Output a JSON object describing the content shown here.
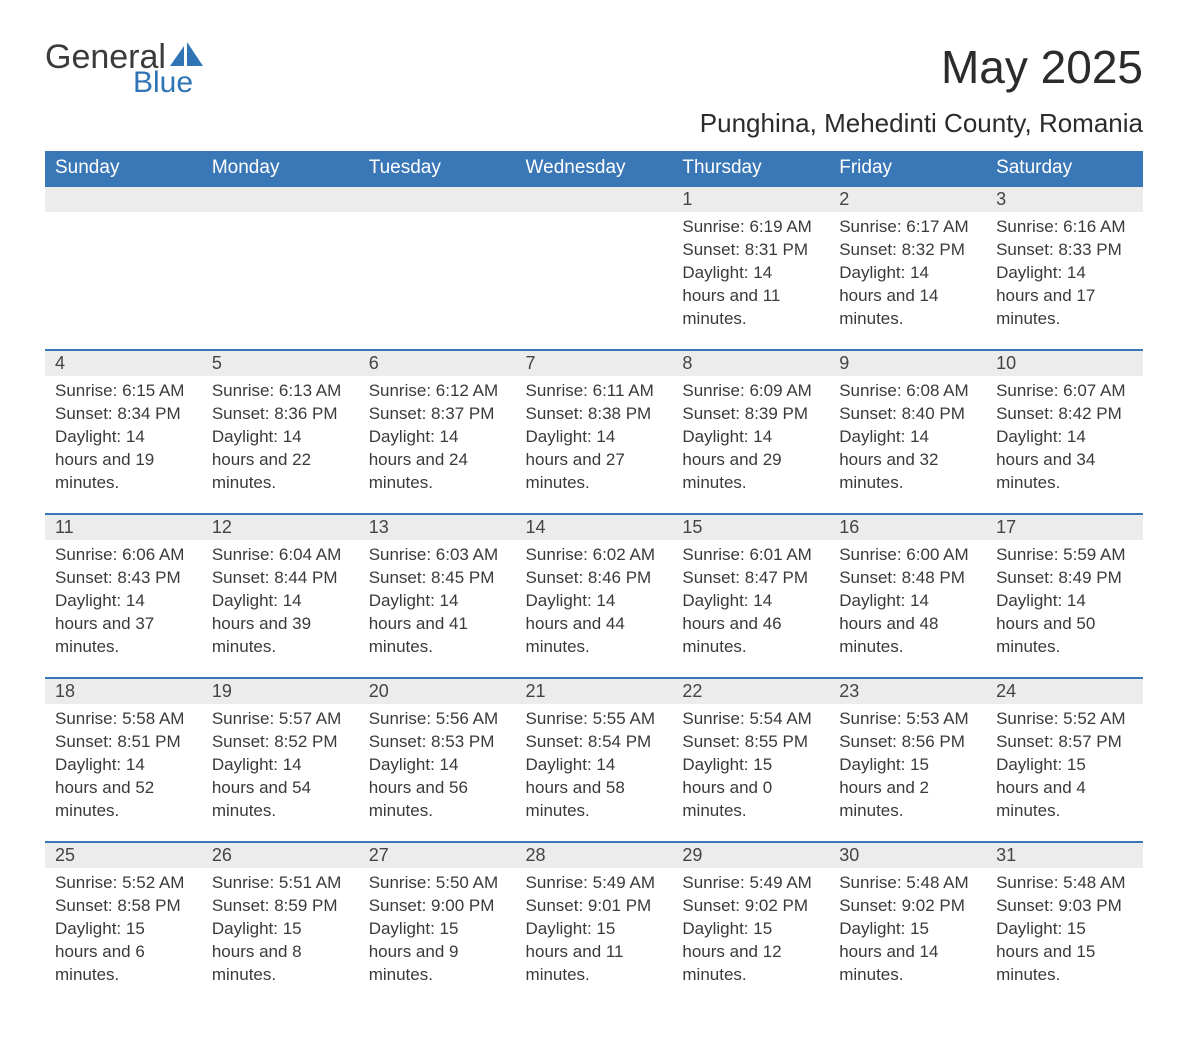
{
  "logo": {
    "word1": "General",
    "word2": "Blue",
    "sail_color": "#2f74b5"
  },
  "header": {
    "month_title": "May 2025",
    "location": "Punghina, Mehedinti County, Romania"
  },
  "colors": {
    "header_bg": "#3a77b7",
    "header_text": "#ffffff",
    "daynum_bg": "#ececec",
    "row_border": "#3a77b7",
    "body_text": "#3a3a3a",
    "page_bg": "#ffffff"
  },
  "typography": {
    "month_title_fontsize": 46,
    "location_fontsize": 26,
    "weekday_fontsize": 19,
    "daynum_fontsize": 18,
    "body_fontsize": 17
  },
  "layout": {
    "columns": 7,
    "rows": 5,
    "first_weekday": "Sunday"
  },
  "weekdays": [
    "Sunday",
    "Monday",
    "Tuesday",
    "Wednesday",
    "Thursday",
    "Friday",
    "Saturday"
  ],
  "weeks": [
    [
      null,
      null,
      null,
      null,
      {
        "n": "1",
        "sunrise": "6:19 AM",
        "sunset": "8:31 PM",
        "daylight": "14 hours and 11 minutes."
      },
      {
        "n": "2",
        "sunrise": "6:17 AM",
        "sunset": "8:32 PM",
        "daylight": "14 hours and 14 minutes."
      },
      {
        "n": "3",
        "sunrise": "6:16 AM",
        "sunset": "8:33 PM",
        "daylight": "14 hours and 17 minutes."
      }
    ],
    [
      {
        "n": "4",
        "sunrise": "6:15 AM",
        "sunset": "8:34 PM",
        "daylight": "14 hours and 19 minutes."
      },
      {
        "n": "5",
        "sunrise": "6:13 AM",
        "sunset": "8:36 PM",
        "daylight": "14 hours and 22 minutes."
      },
      {
        "n": "6",
        "sunrise": "6:12 AM",
        "sunset": "8:37 PM",
        "daylight": "14 hours and 24 minutes."
      },
      {
        "n": "7",
        "sunrise": "6:11 AM",
        "sunset": "8:38 PM",
        "daylight": "14 hours and 27 minutes."
      },
      {
        "n": "8",
        "sunrise": "6:09 AM",
        "sunset": "8:39 PM",
        "daylight": "14 hours and 29 minutes."
      },
      {
        "n": "9",
        "sunrise": "6:08 AM",
        "sunset": "8:40 PM",
        "daylight": "14 hours and 32 minutes."
      },
      {
        "n": "10",
        "sunrise": "6:07 AM",
        "sunset": "8:42 PM",
        "daylight": "14 hours and 34 minutes."
      }
    ],
    [
      {
        "n": "11",
        "sunrise": "6:06 AM",
        "sunset": "8:43 PM",
        "daylight": "14 hours and 37 minutes."
      },
      {
        "n": "12",
        "sunrise": "6:04 AM",
        "sunset": "8:44 PM",
        "daylight": "14 hours and 39 minutes."
      },
      {
        "n": "13",
        "sunrise": "6:03 AM",
        "sunset": "8:45 PM",
        "daylight": "14 hours and 41 minutes."
      },
      {
        "n": "14",
        "sunrise": "6:02 AM",
        "sunset": "8:46 PM",
        "daylight": "14 hours and 44 minutes."
      },
      {
        "n": "15",
        "sunrise": "6:01 AM",
        "sunset": "8:47 PM",
        "daylight": "14 hours and 46 minutes."
      },
      {
        "n": "16",
        "sunrise": "6:00 AM",
        "sunset": "8:48 PM",
        "daylight": "14 hours and 48 minutes."
      },
      {
        "n": "17",
        "sunrise": "5:59 AM",
        "sunset": "8:49 PM",
        "daylight": "14 hours and 50 minutes."
      }
    ],
    [
      {
        "n": "18",
        "sunrise": "5:58 AM",
        "sunset": "8:51 PM",
        "daylight": "14 hours and 52 minutes."
      },
      {
        "n": "19",
        "sunrise": "5:57 AM",
        "sunset": "8:52 PM",
        "daylight": "14 hours and 54 minutes."
      },
      {
        "n": "20",
        "sunrise": "5:56 AM",
        "sunset": "8:53 PM",
        "daylight": "14 hours and 56 minutes."
      },
      {
        "n": "21",
        "sunrise": "5:55 AM",
        "sunset": "8:54 PM",
        "daylight": "14 hours and 58 minutes."
      },
      {
        "n": "22",
        "sunrise": "5:54 AM",
        "sunset": "8:55 PM",
        "daylight": "15 hours and 0 minutes."
      },
      {
        "n": "23",
        "sunrise": "5:53 AM",
        "sunset": "8:56 PM",
        "daylight": "15 hours and 2 minutes."
      },
      {
        "n": "24",
        "sunrise": "5:52 AM",
        "sunset": "8:57 PM",
        "daylight": "15 hours and 4 minutes."
      }
    ],
    [
      {
        "n": "25",
        "sunrise": "5:52 AM",
        "sunset": "8:58 PM",
        "daylight": "15 hours and 6 minutes."
      },
      {
        "n": "26",
        "sunrise": "5:51 AM",
        "sunset": "8:59 PM",
        "daylight": "15 hours and 8 minutes."
      },
      {
        "n": "27",
        "sunrise": "5:50 AM",
        "sunset": "9:00 PM",
        "daylight": "15 hours and 9 minutes."
      },
      {
        "n": "28",
        "sunrise": "5:49 AM",
        "sunset": "9:01 PM",
        "daylight": "15 hours and 11 minutes."
      },
      {
        "n": "29",
        "sunrise": "5:49 AM",
        "sunset": "9:02 PM",
        "daylight": "15 hours and 12 minutes."
      },
      {
        "n": "30",
        "sunrise": "5:48 AM",
        "sunset": "9:02 PM",
        "daylight": "15 hours and 14 minutes."
      },
      {
        "n": "31",
        "sunrise": "5:48 AM",
        "sunset": "9:03 PM",
        "daylight": "15 hours and 15 minutes."
      }
    ]
  ],
  "labels": {
    "sunrise": "Sunrise:",
    "sunset": "Sunset:",
    "daylight": "Daylight:"
  }
}
